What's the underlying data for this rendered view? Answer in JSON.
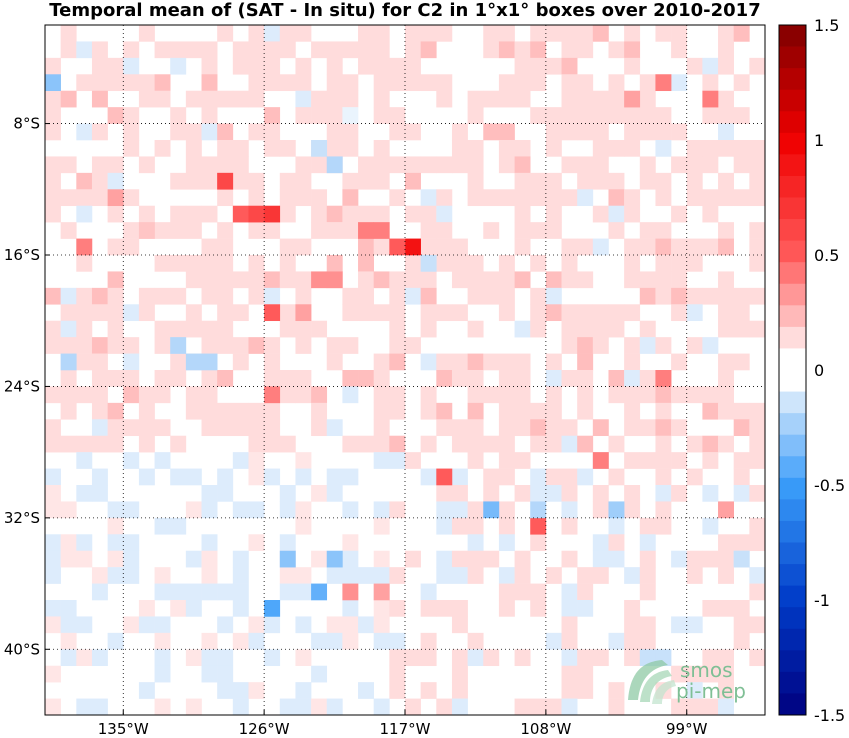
{
  "title": "Temporal mean of (SAT - In situ) for C2 in 1°x1° boxes over 2010-2017",
  "map": {
    "lon_range": [
      -140,
      -94
    ],
    "lat_range": [
      -44,
      -2
    ],
    "lon_labels": [
      "135°W",
      "126°W",
      "117°W",
      "108°W",
      "99°W"
    ],
    "lat_labels": [
      "8°S",
      "16°S",
      "24°S",
      "32°S",
      "40°S"
    ],
    "gridlines": "dotted"
  },
  "colorbar": {
    "range": [
      -1.5,
      1.5
    ],
    "tick_labels": [
      "1.5",
      "1",
      "0.5",
      "0",
      "-0.5",
      "-1",
      "-1.5"
    ],
    "colors": {
      "negative_max": "#00007f",
      "negative_mid": "#3a9dfa",
      "neutral": "#ffffff",
      "positive_mid": "#ff3a3a",
      "positive_max": "#7f0000"
    }
  },
  "logo": {
    "text_line1": "smos",
    "text_line2": "pi-mep",
    "color": "#7fbf95"
  },
  "chart_data": {
    "type": "heatmap",
    "title": "Temporal mean of (SAT - In situ) for C2 in 1°x1° boxes over 2010-2017",
    "xlabel": "",
    "ylabel": "",
    "x_range_lon": [
      -140,
      -94
    ],
    "y_range_lat": [
      -44,
      -2
    ],
    "value_range": [
      -1.5,
      1.5
    ],
    "note_values": "approximate cell means in psu",
    "cells": [
      {
        "lon": -135.5,
        "lat": -12.5,
        "value": 0.3
      },
      {
        "lon": -133.5,
        "lat": -14.5,
        "value": 0.2
      },
      {
        "lon": -127.5,
        "lat": -13.5,
        "value": 0.5
      },
      {
        "lon": -126.5,
        "lat": -13.5,
        "value": 0.6
      },
      {
        "lon": -125.5,
        "lat": -13.5,
        "value": 0.7
      },
      {
        "lon": -128.5,
        "lat": -11.5,
        "value": 0.6
      },
      {
        "lon": -137.5,
        "lat": -15.5,
        "value": 0.4
      },
      {
        "lon": -116.5,
        "lat": -15.5,
        "value": 0.9
      },
      {
        "lon": -117.5,
        "lat": -15.5,
        "value": 0.5
      },
      {
        "lon": -118.5,
        "lat": -14.5,
        "value": 0.4
      },
      {
        "lon": -119.5,
        "lat": -14.5,
        "value": 0.4
      },
      {
        "lon": -122.5,
        "lat": -17.5,
        "value": 0.35
      },
      {
        "lon": -121.5,
        "lat": -17.5,
        "value": 0.35
      },
      {
        "lon": -123.5,
        "lat": -19.5,
        "value": 0.3
      },
      {
        "lon": -125.5,
        "lat": -19.5,
        "value": 0.5
      },
      {
        "lon": -115.5,
        "lat": -16.5,
        "value": -0.15
      },
      {
        "lon": -120.5,
        "lat": -7.5,
        "value": -0.1
      },
      {
        "lon": -122.5,
        "lat": -9.5,
        "value": -0.15
      },
      {
        "lon": -121.5,
        "lat": -10.5,
        "value": -0.2
      },
      {
        "lon": -102.5,
        "lat": -6.5,
        "value": 0.3
      },
      {
        "lon": -100.5,
        "lat": -5.5,
        "value": 0.4
      },
      {
        "lon": -97.5,
        "lat": -6.5,
        "value": 0.4
      },
      {
        "lon": -139.5,
        "lat": -5.5,
        "value": -0.3
      },
      {
        "lon": -138.5,
        "lat": -22.5,
        "value": -0.2
      },
      {
        "lon": -131.5,
        "lat": -21.5,
        "value": -0.2
      },
      {
        "lon": -130.5,
        "lat": -22.5,
        "value": -0.2
      },
      {
        "lon": -129.5,
        "lat": -22.5,
        "value": -0.2
      },
      {
        "lon": -125.5,
        "lat": -24.5,
        "value": 0.4
      },
      {
        "lon": -111.5,
        "lat": -31.5,
        "value": -0.35
      },
      {
        "lon": -108.5,
        "lat": -32.5,
        "value": 0.5
      },
      {
        "lon": -114.5,
        "lat": -29.5,
        "value": 0.5
      },
      {
        "lon": -104.5,
        "lat": -28.5,
        "value": 0.4
      },
      {
        "lon": -100.5,
        "lat": -23.5,
        "value": 0.4
      },
      {
        "lon": -103.5,
        "lat": -31.5,
        "value": -0.25
      },
      {
        "lon": -108.5,
        "lat": -31.5,
        "value": -0.2
      },
      {
        "lon": -96.5,
        "lat": -31.5,
        "value": 0.3
      },
      {
        "lon": -125.5,
        "lat": -37.5,
        "value": -0.45
      },
      {
        "lon": -122.5,
        "lat": -36.5,
        "value": -0.4
      },
      {
        "lon": -124.5,
        "lat": -34.5,
        "value": -0.3
      },
      {
        "lon": -121.5,
        "lat": -34.5,
        "value": -0.3
      },
      {
        "lon": -120.5,
        "lat": -36.5,
        "value": 0.35
      },
      {
        "lon": -118.5,
        "lat": -36.5,
        "value": 0.3
      },
      {
        "lon": -101.5,
        "lat": -40.5,
        "value": -0.15
      },
      {
        "lon": -100.5,
        "lat": -40.5,
        "value": -0.15
      },
      {
        "lon": -95.5,
        "lat": -34.5,
        "value": -0.15
      }
    ]
  }
}
